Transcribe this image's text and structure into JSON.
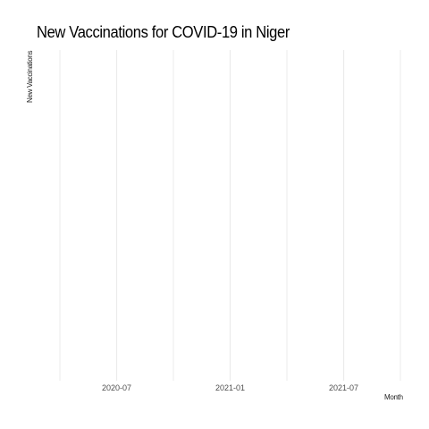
{
  "chart_data": {
    "type": "bar",
    "title": "New Vaccinations for COVID-19 in Niger",
    "xlabel": "Month",
    "ylabel": "New Vaccinations",
    "x_ticks": [
      "2020-07",
      "2021-01",
      "2021-07"
    ],
    "x_axis_type": "date",
    "x_range": [
      "2020-04",
      "2021-10"
    ],
    "series": [],
    "grid": true,
    "grid_color": "#ebebeb",
    "legend": "none"
  }
}
